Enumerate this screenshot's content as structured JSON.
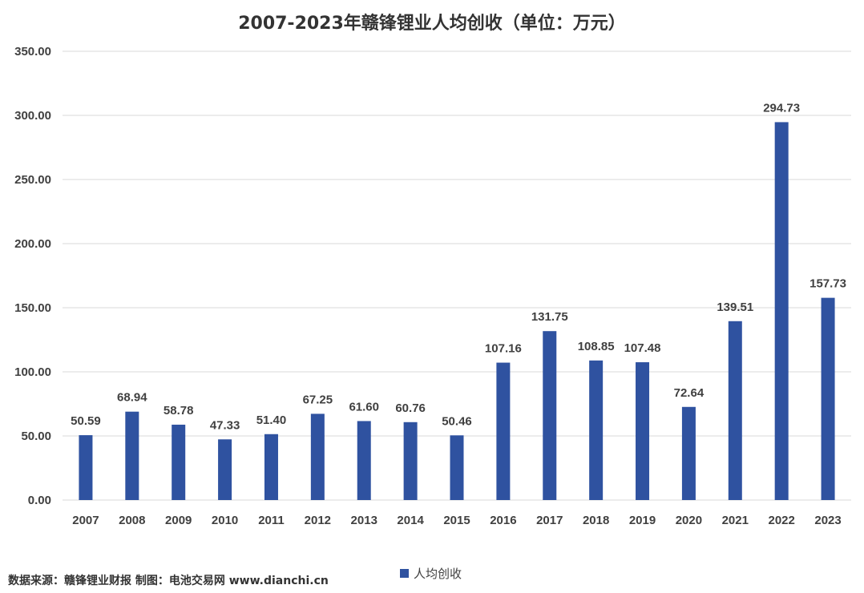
{
  "chart_data": {
    "type": "bar",
    "title": "2007-2023年赣锋锂业人均创收（单位：万元）",
    "categories": [
      "2007",
      "2008",
      "2009",
      "2010",
      "2011",
      "2012",
      "2013",
      "2014",
      "2015",
      "2016",
      "2017",
      "2018",
      "2019",
      "2020",
      "2021",
      "2022",
      "2023"
    ],
    "series": [
      {
        "name": "人均创收",
        "values": [
          50.59,
          68.94,
          58.78,
          47.33,
          51.4,
          67.25,
          61.6,
          60.76,
          50.46,
          107.16,
          131.75,
          108.85,
          107.48,
          72.64,
          139.51,
          294.73,
          157.73
        ],
        "color": "#2F52A0"
      }
    ],
    "data_labels": [
      "50.59",
      "68.94",
      "58.78",
      "47.33",
      "51.40",
      "67.25",
      "61.60",
      "60.76",
      "50.46",
      "107.16",
      "131.75",
      "108.85",
      "107.48",
      "72.64",
      "139.51",
      "294.73",
      "157.73"
    ],
    "y_ticks": [
      "0.00",
      "50.00",
      "100.00",
      "150.00",
      "200.00",
      "250.00",
      "300.00",
      "350.00"
    ],
    "ylim": [
      0,
      350
    ],
    "y_step": 50,
    "grid": true,
    "legend_position": "bottom",
    "gridline_color": "#D9D9D9"
  },
  "source_note": "数据来源：赣锋锂业财报  制图：电池交易网 www.dianchi.cn"
}
